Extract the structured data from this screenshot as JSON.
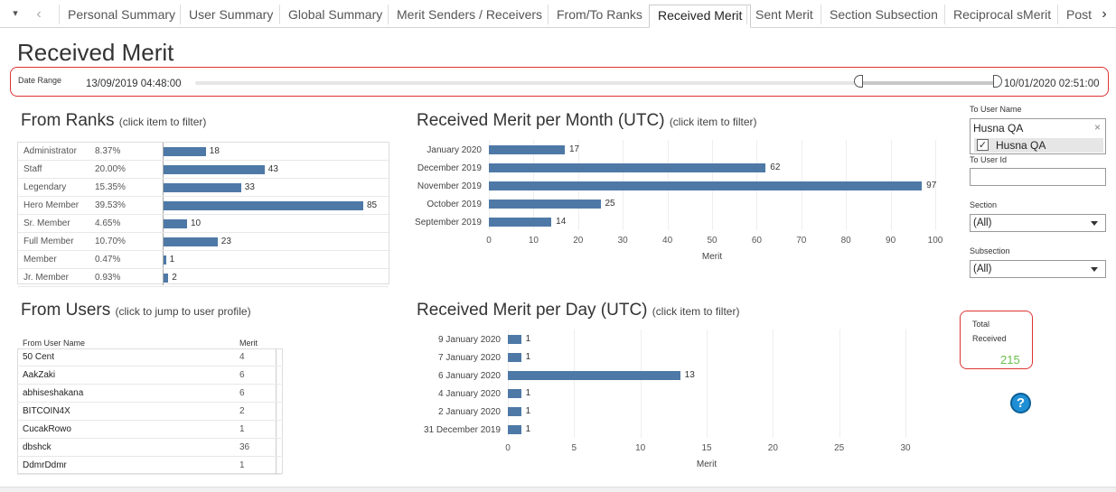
{
  "tabs": [
    {
      "label": "Personal Summary",
      "active": false
    },
    {
      "label": "User Summary",
      "active": false
    },
    {
      "label": "Global Summary",
      "active": false
    },
    {
      "label": "Merit Senders / Receivers",
      "active": false
    },
    {
      "label": "From/To Ranks",
      "active": false
    },
    {
      "label": "Received Merit",
      "active": true
    },
    {
      "label": "Sent Merit",
      "active": false
    },
    {
      "label": "Section Subsection",
      "active": false
    },
    {
      "label": "Reciprocal sMerit",
      "active": false
    },
    {
      "label": "Post",
      "active": false
    }
  ],
  "tab_controls": {
    "menu_icon": "▾",
    "prev_icon": "‹",
    "next_icon": "›"
  },
  "page_title": "Received Merit",
  "date_range": {
    "label": "Date Range",
    "start": "13/09/2019 04:48:00",
    "end": "10/01/2020 02:51:00"
  },
  "from_ranks": {
    "title": "From Ranks",
    "hint": "(click item to filter)",
    "rows": [
      {
        "rank": "Administrator",
        "pct": "8.37%",
        "value": 18
      },
      {
        "rank": "Staff",
        "pct": "20.00%",
        "value": 43
      },
      {
        "rank": "Legendary",
        "pct": "15.35%",
        "value": 33
      },
      {
        "rank": "Hero Member",
        "pct": "39.53%",
        "value": 85
      },
      {
        "rank": "Sr. Member",
        "pct": "4.65%",
        "value": 10
      },
      {
        "rank": "Full Member",
        "pct": "10.70%",
        "value": 23
      },
      {
        "rank": "Member",
        "pct": "0.47%",
        "value": 1
      },
      {
        "rank": "Jr. Member",
        "pct": "0.93%",
        "value": 2
      }
    ]
  },
  "per_month": {
    "title": "Received Merit per Month (UTC)",
    "hint": "(click item to filter)"
  },
  "per_day": {
    "title": "Received Merit per Day (UTC)",
    "hint": "(click item to filter)"
  },
  "chart_data": [
    {
      "type": "bar",
      "orientation": "horizontal",
      "categories": [
        "January 2020",
        "December 2019",
        "November 2019",
        "October 2019",
        "September 2019"
      ],
      "values": [
        17,
        62,
        97,
        25,
        14
      ],
      "xlabel": "Merit",
      "xlim": [
        0,
        100
      ],
      "ticks": [
        0,
        10,
        20,
        30,
        40,
        50,
        60,
        70,
        80,
        90,
        100
      ],
      "grid": true
    },
    {
      "type": "bar",
      "orientation": "horizontal",
      "categories": [
        "9 January 2020",
        "7 January 2020",
        "6 January 2020",
        "4 January 2020",
        "2 January 2020",
        "31 December 2019"
      ],
      "values": [
        1,
        1,
        13,
        1,
        1,
        1
      ],
      "xlabel": "Merit",
      "xlim": [
        0,
        30
      ],
      "ticks": [
        0,
        5,
        10,
        15,
        20,
        25,
        30
      ],
      "grid": true
    }
  ],
  "from_users": {
    "title": "From Users",
    "hint": "(click to jump to user profile)",
    "col_name": "From User Name",
    "col_merit": "Merit",
    "rows": [
      {
        "name": "50 Cent",
        "merit": "4"
      },
      {
        "name": "AakZaki",
        "merit": "6"
      },
      {
        "name": "abhiseshakana",
        "merit": "6"
      },
      {
        "name": "BITCOIN4X",
        "merit": "2"
      },
      {
        "name": "CucakRowo",
        "merit": "1"
      },
      {
        "name": "dbshck",
        "merit": "36"
      },
      {
        "name": "DdmrDdmr",
        "merit": "1"
      }
    ]
  },
  "filters": {
    "to_user_name_label": "To User Name",
    "to_user_name_value": "Husna QA",
    "to_user_option": "Husna QA",
    "to_user_option_checked": "✓",
    "clear_icon": "×",
    "to_user_id_label": "To User Id",
    "to_user_id_value": "",
    "section_label": "Section",
    "section_value": "(All)",
    "subsection_label": "Subsection",
    "subsection_value": "(All)"
  },
  "total": {
    "line1": "Total",
    "line2": "Received",
    "value": "215"
  },
  "help_icon": "?",
  "colors": {
    "bar": "#4e79a7",
    "highlight_border": "#dd3333",
    "total_value": "#6ac04c",
    "help": "#1f8fd5"
  }
}
